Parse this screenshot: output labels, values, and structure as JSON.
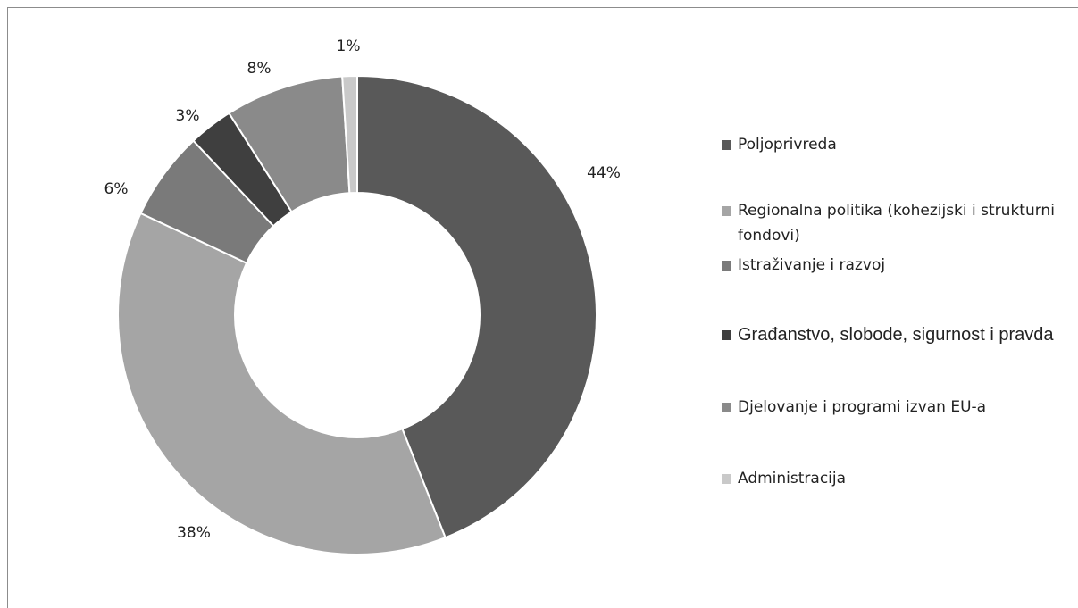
{
  "chart_data": {
    "type": "donut",
    "categories": [
      "Poljoprivreda",
      "Regionalna politika (kohezijski i strukturni fondovi)",
      "Istraživanje i razvoj",
      "Građanstvo, slobode, sigurnost i pravda",
      "Djelovanje i programi izvan EU-a",
      "Administracija"
    ],
    "values": [
      44,
      38,
      6,
      3,
      8,
      1
    ],
    "value_labels": [
      "44%",
      "38%",
      "6%",
      "3%",
      "8%",
      "1%"
    ],
    "colors": [
      "#595959",
      "#a5a5a5",
      "#7a7a7a",
      "#3f3f3f",
      "#8a8a8a",
      "#c9c9c9"
    ],
    "legend": "right"
  }
}
